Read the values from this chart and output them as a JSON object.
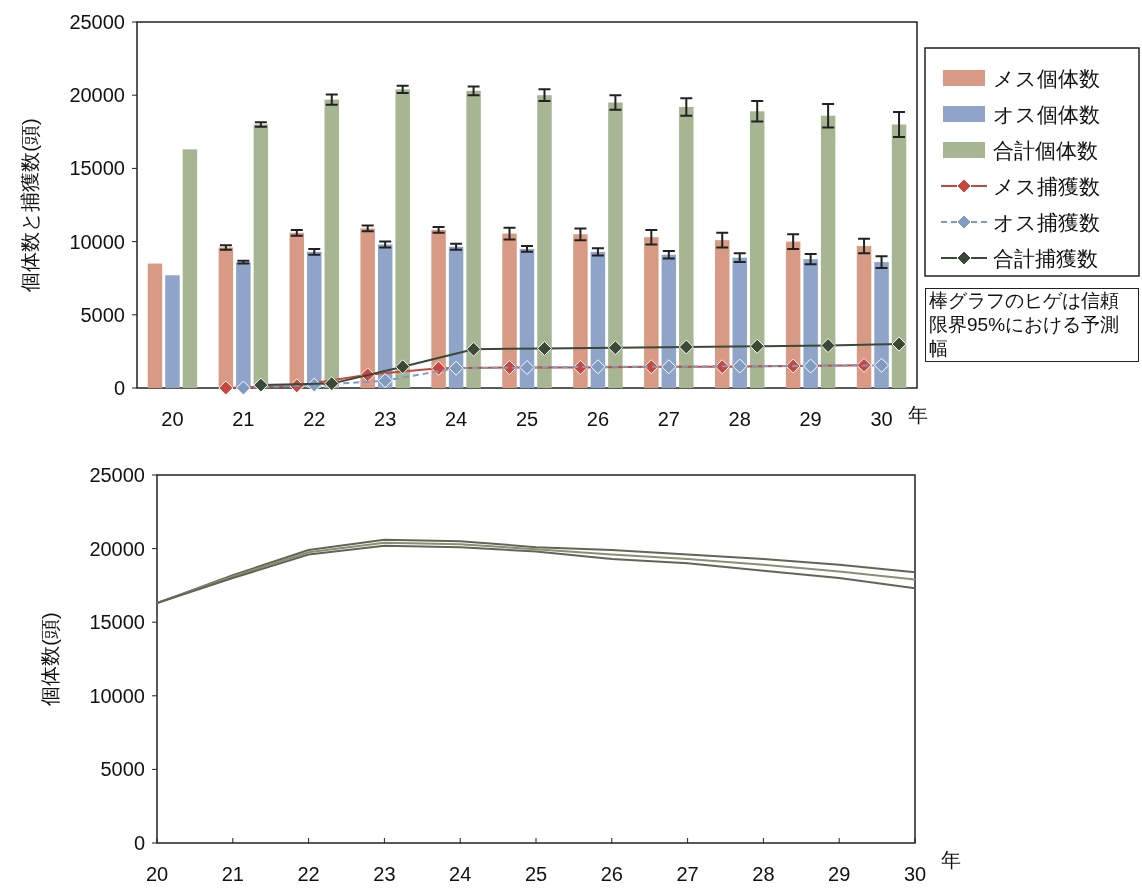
{
  "chart_data": [
    {
      "type": "bar",
      "ylabel": "個体数と捕獲数(頭)",
      "xlabel": "年",
      "categories": [
        "20",
        "21",
        "22",
        "23",
        "24",
        "25",
        "26",
        "27",
        "28",
        "29",
        "30"
      ],
      "ylim": [
        0,
        25000
      ],
      "yticks": [
        0,
        5000,
        10000,
        15000,
        20000,
        25000
      ],
      "legend": "right",
      "annotations": [
        "棒グラフのヒゲは信頼限界95%における予測幅"
      ],
      "series": [
        {
          "name": "メス個体数",
          "color": "#d99a85",
          "values": [
            8500,
            9600,
            10600,
            10900,
            10800,
            10550,
            10500,
            10300,
            10100,
            10000,
            9700
          ],
          "errors": [
            null,
            150,
            200,
            200,
            200,
            400,
            400,
            500,
            500,
            500,
            500
          ]
        },
        {
          "name": "オス個体数",
          "color": "#8ea4c8",
          "values": [
            7700,
            8600,
            9300,
            9800,
            9650,
            9500,
            9300,
            9100,
            8900,
            8800,
            8600
          ],
          "errors": [
            null,
            100,
            200,
            200,
            200,
            200,
            250,
            250,
            300,
            350,
            400
          ]
        },
        {
          "name": "合計個体数",
          "color": "#a6b592",
          "values": [
            16300,
            18000,
            19700,
            20400,
            20300,
            20000,
            19500,
            19200,
            18900,
            18600,
            18000
          ],
          "errors": [
            null,
            150,
            350,
            250,
            300,
            400,
            500,
            600,
            700,
            800,
            850
          ]
        },
        {
          "name": "メス捕獲数",
          "type": "line",
          "color": "#c9473f",
          "marker": "diamond",
          "line_style": "solid",
          "values": [
            null,
            0,
            150,
            900,
            1350,
            1400,
            1400,
            1450,
            1450,
            1500,
            1550
          ]
        },
        {
          "name": "オス捕獲数",
          "type": "line",
          "color": "#7f9cc0",
          "marker": "diamond",
          "line_style": "dashed",
          "values": [
            null,
            0,
            200,
            500,
            1350,
            1400,
            1450,
            1450,
            1500,
            1500,
            1550
          ]
        },
        {
          "name": "合計捕獲数",
          "type": "line",
          "color": "#3a4a36",
          "marker": "diamond",
          "line_style": "solid",
          "values": [
            null,
            200,
            300,
            1450,
            2650,
            2700,
            2750,
            2800,
            2850,
            2900,
            3000
          ]
        }
      ]
    },
    {
      "type": "line",
      "ylabel": "個体数(頭)",
      "xlabel": "年",
      "xlim": [
        20,
        30
      ],
      "xticks": [
        20,
        21,
        22,
        23,
        24,
        25,
        26,
        27,
        28,
        29,
        30
      ],
      "ylim": [
        0,
        25000
      ],
      "yticks": [
        0,
        5000,
        10000,
        15000,
        20000,
        25000
      ],
      "x": [
        20,
        21,
        22,
        23,
        24,
        25,
        26,
        27,
        28,
        29,
        30
      ],
      "series": [
        {
          "color": "#5f6656",
          "values": [
            16300,
            18200,
            19900,
            20600,
            20500,
            20100,
            19900,
            19600,
            19300,
            18900,
            18400
          ]
        },
        {
          "color": "#8a8f70",
          "values": [
            16300,
            18100,
            19750,
            20400,
            20300,
            19950,
            19600,
            19300,
            18900,
            18450,
            17900
          ]
        },
        {
          "color": "#5f6656",
          "values": [
            16300,
            18000,
            19600,
            20200,
            20100,
            19800,
            19300,
            19000,
            18500,
            18000,
            17300
          ]
        }
      ]
    }
  ]
}
